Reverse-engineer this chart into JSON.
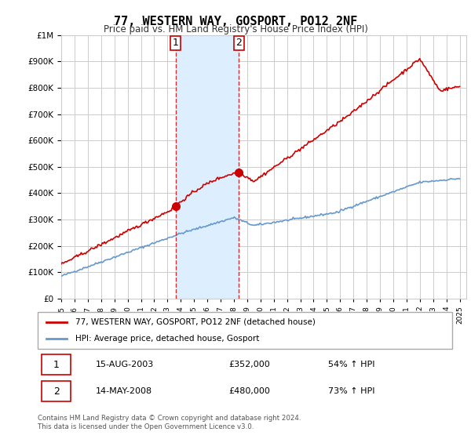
{
  "title": "77, WESTERN WAY, GOSPORT, PO12 2NF",
  "subtitle": "Price paid vs. HM Land Registry's House Price Index (HPI)",
  "legend_property": "77, WESTERN WAY, GOSPORT, PO12 2NF (detached house)",
  "legend_hpi": "HPI: Average price, detached house, Gosport",
  "purchase1_date": 2003.62,
  "purchase1_year_label": "15-AUG-2003",
  "purchase1_price": 352000,
  "purchase1_pct": "54% ↑ HPI",
  "purchase2_date": 2008.37,
  "purchase2_year_label": "14-MAY-2008",
  "purchase2_price": 480000,
  "purchase2_pct": "73% ↑ HPI",
  "footer": "Contains HM Land Registry data © Crown copyright and database right 2024.\nThis data is licensed under the Open Government Licence v3.0.",
  "property_color": "#cc0000",
  "hpi_color": "#6699cc",
  "shade_color": "#ddeeff",
  "marker_color": "#cc0000",
  "vline_color": "#cc0000",
  "background_color": "#ffffff",
  "grid_color": "#cccccc",
  "ylim": [
    0,
    1000000
  ],
  "xlim": [
    1995,
    2025.5
  ]
}
